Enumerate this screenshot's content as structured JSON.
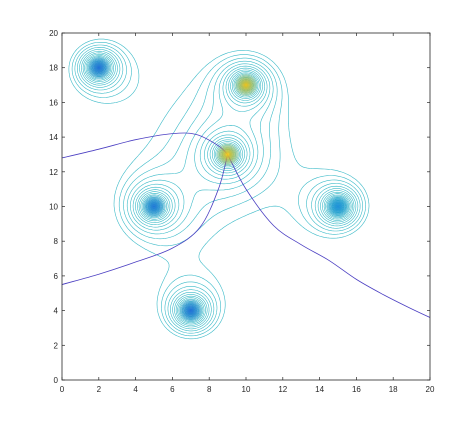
{
  "chart_data": {
    "type": "contour",
    "xlim": [
      0,
      20
    ],
    "ylim": [
      0,
      20
    ],
    "x_ticks": [
      "0",
      "2",
      "4",
      "6",
      "8",
      "10",
      "12",
      "14",
      "16",
      "18",
      "20"
    ],
    "y_ticks": [
      "0",
      "2",
      "4",
      "6",
      "8",
      "10",
      "12",
      "14",
      "16",
      "18",
      "20"
    ],
    "sources": [
      {
        "x": 2,
        "y": 18,
        "peak_color": "#1f6fd6"
      },
      {
        "x": 10,
        "y": 17,
        "peak_color": "#e9c11c"
      },
      {
        "x": 9,
        "y": 13,
        "peak_color": "#f0c51a"
      },
      {
        "x": 5,
        "y": 10,
        "peak_color": "#1f78d6"
      },
      {
        "x": 15,
        "y": 10,
        "peak_color": "#1c8fd8"
      },
      {
        "x": 7,
        "y": 4,
        "peak_color": "#1f6fd6"
      }
    ],
    "boundary_curves": [
      {
        "points": [
          [
            0,
            12.8
          ],
          [
            2,
            13.3
          ],
          [
            4,
            13.85
          ],
          [
            6,
            14.2
          ],
          [
            7.3,
            14.15
          ],
          [
            8.5,
            13.5
          ],
          [
            9,
            13
          ]
        ]
      },
      {
        "points": [
          [
            0,
            5.5
          ],
          [
            2,
            6.1
          ],
          [
            4,
            6.8
          ],
          [
            6,
            7.6
          ],
          [
            7.5,
            8.8
          ],
          [
            8.5,
            11
          ],
          [
            9,
            13
          ]
        ]
      },
      {
        "points": [
          [
            9,
            13
          ],
          [
            10,
            11
          ],
          [
            11.5,
            8.9
          ],
          [
            13,
            7.8
          ],
          [
            14.5,
            6.9
          ],
          [
            16,
            5.8
          ],
          [
            17.5,
            4.9
          ],
          [
            19,
            4.1
          ],
          [
            20,
            3.6
          ]
        ]
      }
    ],
    "colors": {
      "contour": "#3bbac8",
      "boundary": "#4b3fc2",
      "axes": "#262626",
      "background": "#ffffff"
    },
    "grid": false,
    "legend": "none"
  }
}
